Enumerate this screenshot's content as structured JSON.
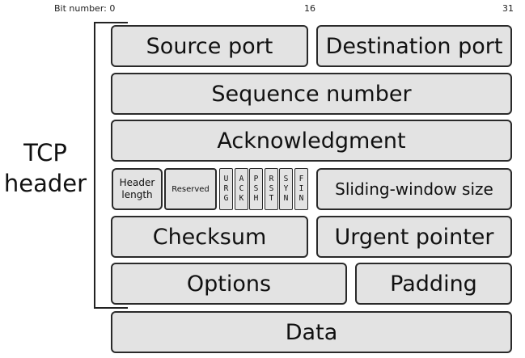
{
  "bit_labels": {
    "start": "Bit number: 0",
    "middle": "16",
    "end": "31"
  },
  "side_label": {
    "line1": "TCP",
    "line2": "header"
  },
  "fields": {
    "source_port": "Source port",
    "destination_port": "Destination port",
    "sequence_number": "Sequence number",
    "acknowledgment": "Acknowledgment",
    "header_length_line1": "Header",
    "header_length_line2": "length",
    "reserved": "Reserved",
    "sliding_window": "Sliding-window size",
    "checksum": "Checksum",
    "urgent_pointer": "Urgent pointer",
    "options": "Options",
    "padding": "Padding",
    "data": "Data"
  },
  "flags": [
    {
      "name": "URG",
      "letters": "U\nR\nG"
    },
    {
      "name": "ACK",
      "letters": "A\nC\nK"
    },
    {
      "name": "PSH",
      "letters": "P\nS\nH"
    },
    {
      "name": "RST",
      "letters": "R\nS\nT"
    },
    {
      "name": "SYN",
      "letters": "S\nY\nN"
    },
    {
      "name": "FIN",
      "letters": "F\nI\nN"
    }
  ]
}
